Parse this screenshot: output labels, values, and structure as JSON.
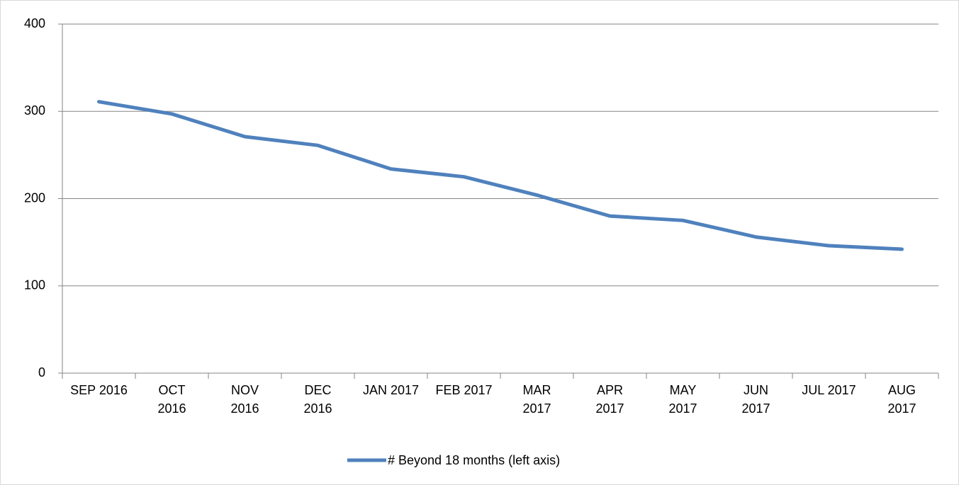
{
  "chart_data": {
    "type": "line",
    "categories": [
      "SEP 2016",
      "OCT\n2016",
      "NOV\n2016",
      "DEC\n2016",
      "JAN 2017",
      "FEB 2017",
      "MAR\n2017",
      "APR\n2017",
      "MAY\n2017",
      "JUN\n2017",
      "JUL 2017",
      "AUG\n2017"
    ],
    "series": [
      {
        "name": "# Beyond 18 months (left axis)",
        "color": "#4f81bd",
        "values": [
          311,
          297,
          271,
          261,
          234,
          225,
          204,
          180,
          175,
          156,
          146,
          142
        ]
      }
    ],
    "ylim": [
      0,
      400
    ],
    "yticks": [
      0,
      100,
      200,
      300,
      400
    ],
    "grid": true,
    "legend": "bottom"
  }
}
